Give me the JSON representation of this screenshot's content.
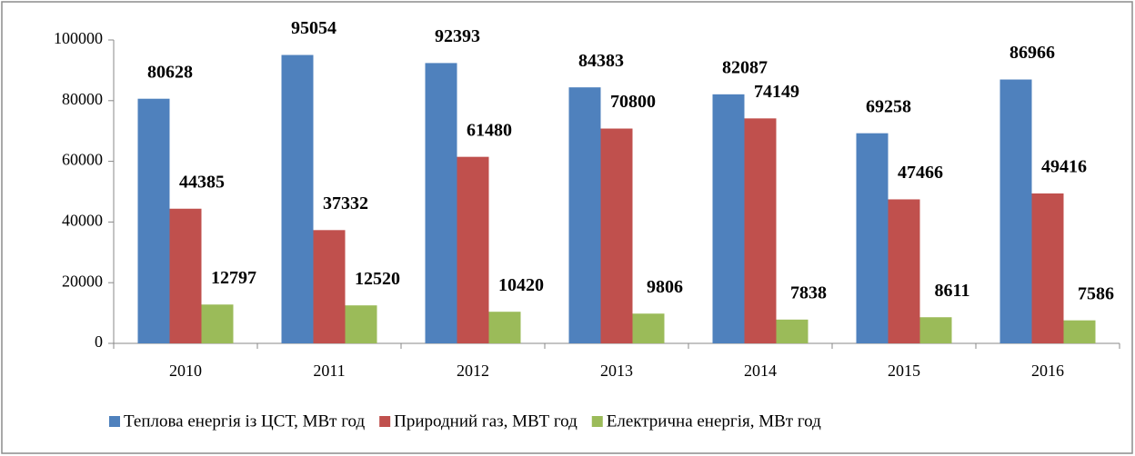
{
  "chart_data": {
    "type": "bar",
    "categories": [
      "2010",
      "2011",
      "2012",
      "2013",
      "2014",
      "2015",
      "2016"
    ],
    "series": [
      {
        "name": "Теплова енергія із ЦСТ, МВт год",
        "color": "#4f81bd",
        "values": [
          80628,
          95054,
          92393,
          84383,
          82087,
          69258,
          86966
        ]
      },
      {
        "name": "Природний газ, МВТ год",
        "color": "#c0504d",
        "values": [
          44385,
          37332,
          61480,
          70800,
          74149,
          47466,
          49416
        ]
      },
      {
        "name": "Електрична енергія, МВт год",
        "color": "#9bbb59",
        "values": [
          12797,
          12520,
          10420,
          9806,
          7838,
          8611,
          7586
        ]
      }
    ],
    "ylim": [
      0,
      100000
    ],
    "yticks": [
      0,
      20000,
      40000,
      60000,
      80000,
      100000
    ],
    "grid": false,
    "legend": "bottom"
  }
}
